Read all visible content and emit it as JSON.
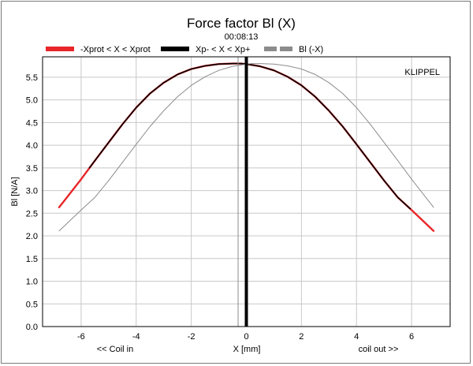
{
  "chart_data": {
    "type": "line",
    "title": "Force factor Bl (X)",
    "subtitle": "00:08:13",
    "brand": "KLIPPEL",
    "xlabel": "X [mm]",
    "xlabel_left": "<< Coil in",
    "xlabel_right": "coil out >>",
    "ylabel": "Bl [N/A]",
    "xlim": [
      -7.4,
      7.4
    ],
    "ylim": [
      0,
      5.95
    ],
    "xticks": [
      -6,
      -4,
      -2,
      0,
      2,
      4,
      6
    ],
    "xtick_labels": [
      "-6",
      "-4",
      "-2",
      "0",
      "2",
      "4",
      "6"
    ],
    "yticks": [
      0,
      0.5,
      1,
      1.5,
      2,
      2.5,
      3,
      3.5,
      4,
      4.5,
      5,
      5.5
    ],
    "ytick_labels": [
      "0.0",
      "0.5",
      "1.0",
      "1.5",
      "2.0",
      "2.5",
      "3.0",
      "3.5",
      "4.0",
      "4.5",
      "5.0",
      "5.5"
    ],
    "grid": true,
    "legend_position": "top",
    "legend": [
      {
        "label": "-Xprot < X < Xprot",
        "color": "#e8262a",
        "style": "solid"
      },
      {
        "label": "Xp- < X < Xp+",
        "color": "#000000",
        "style": "solid"
      },
      {
        "label": "Bl (-X)",
        "color": "#8c8c8c",
        "style": "dashed"
      }
    ],
    "series": [
      {
        "name": "-Xprot < X < Xprot",
        "color": "#e8262a",
        "x": [
          -6.8,
          -6.5,
          -6.0,
          -5.5,
          -5.0,
          -4.5,
          -4.0,
          -3.5,
          -3.0,
          -2.5,
          -2.0,
          -1.5,
          -1.0,
          -0.5,
          -0.2,
          0.0,
          0.5,
          1.0,
          1.5,
          2.0,
          2.5,
          3.0,
          3.5,
          4.0,
          4.5,
          5.0,
          5.5,
          6.0,
          6.5,
          6.8
        ],
        "y": [
          2.63,
          2.86,
          3.25,
          3.66,
          4.06,
          4.46,
          4.83,
          5.14,
          5.38,
          5.56,
          5.68,
          5.75,
          5.79,
          5.8,
          5.8,
          5.79,
          5.74,
          5.65,
          5.51,
          5.32,
          5.07,
          4.76,
          4.41,
          4.02,
          3.62,
          3.22,
          2.85,
          2.57,
          2.28,
          2.11
        ]
      },
      {
        "name": "Xp- < X < Xp+",
        "color": "#000000",
        "x": [
          -5.7,
          -5.5,
          -5.0,
          -4.5,
          -4.0,
          -3.5,
          -3.0,
          -2.5,
          -2.0,
          -1.5,
          -1.0,
          -0.5,
          -0.2,
          0.0,
          0.5,
          1.0,
          1.5,
          2.0,
          2.5,
          3.0,
          3.5,
          4.0,
          4.5,
          5.0,
          5.5,
          5.95
        ],
        "y": [
          3.5,
          3.66,
          4.06,
          4.46,
          4.83,
          5.14,
          5.38,
          5.56,
          5.68,
          5.75,
          5.79,
          5.8,
          5.8,
          5.79,
          5.74,
          5.65,
          5.51,
          5.32,
          5.07,
          4.76,
          4.41,
          4.02,
          3.62,
          3.22,
          2.85,
          2.6
        ]
      },
      {
        "name": "Bl (-X)",
        "color": "#8c8c8c",
        "x": [
          -6.8,
          -6.5,
          -6.0,
          -5.5,
          -5.0,
          -4.5,
          -4.0,
          -3.5,
          -3.0,
          -2.5,
          -2.0,
          -1.5,
          -1.0,
          -0.5,
          0.0,
          0.2,
          0.5,
          1.0,
          1.5,
          2.0,
          2.5,
          3.0,
          3.5,
          4.0,
          4.5,
          5.0,
          5.5,
          6.0,
          6.5,
          6.8
        ],
        "y": [
          2.11,
          2.28,
          2.57,
          2.85,
          3.22,
          3.62,
          4.02,
          4.41,
          4.76,
          5.07,
          5.32,
          5.51,
          5.65,
          5.74,
          5.79,
          5.8,
          5.8,
          5.79,
          5.75,
          5.68,
          5.56,
          5.38,
          5.14,
          4.83,
          4.46,
          4.06,
          3.66,
          3.25,
          2.86,
          2.63
        ]
      }
    ],
    "vlines": [
      {
        "x": 0.0,
        "color": "#000000",
        "width": "thick"
      },
      {
        "x": -0.3,
        "color": "#8c8c8c",
        "width": "thin"
      }
    ]
  }
}
